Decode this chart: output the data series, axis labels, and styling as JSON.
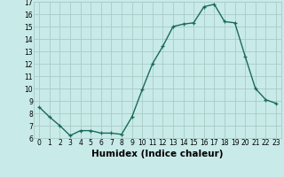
{
  "x": [
    0,
    1,
    2,
    3,
    4,
    5,
    6,
    7,
    8,
    9,
    10,
    11,
    12,
    13,
    14,
    15,
    16,
    17,
    18,
    19,
    20,
    21,
    22,
    23
  ],
  "y": [
    8.5,
    7.7,
    7.0,
    6.2,
    6.6,
    6.6,
    6.4,
    6.4,
    6.3,
    7.7,
    9.9,
    12.0,
    13.4,
    15.0,
    15.2,
    15.3,
    16.6,
    16.8,
    15.4,
    15.3,
    12.6,
    10.0,
    9.1,
    8.8
  ],
  "line_color": "#1a6b5a",
  "marker": "+",
  "marker_size": 3.5,
  "bg_color": "#c8eae8",
  "grid_color": "#a8ccc8",
  "xlabel": "Humidex (Indice chaleur)",
  "ylabel": "",
  "xlim": [
    -0.5,
    23.5
  ],
  "ylim": [
    6,
    17
  ],
  "yticks": [
    6,
    7,
    8,
    9,
    10,
    11,
    12,
    13,
    14,
    15,
    16,
    17
  ],
  "xticks": [
    0,
    1,
    2,
    3,
    4,
    5,
    6,
    7,
    8,
    9,
    10,
    11,
    12,
    13,
    14,
    15,
    16,
    17,
    18,
    19,
    20,
    21,
    22,
    23
  ],
  "xtick_labels": [
    "0",
    "1",
    "2",
    "3",
    "4",
    "5",
    "6",
    "7",
    "8",
    "9",
    "10",
    "11",
    "12",
    "13",
    "14",
    "15",
    "16",
    "17",
    "18",
    "19",
    "20",
    "21",
    "22",
    "23"
  ],
  "tick_fontsize": 5.5,
  "xlabel_fontsize": 7.5,
  "line_width": 1.0
}
